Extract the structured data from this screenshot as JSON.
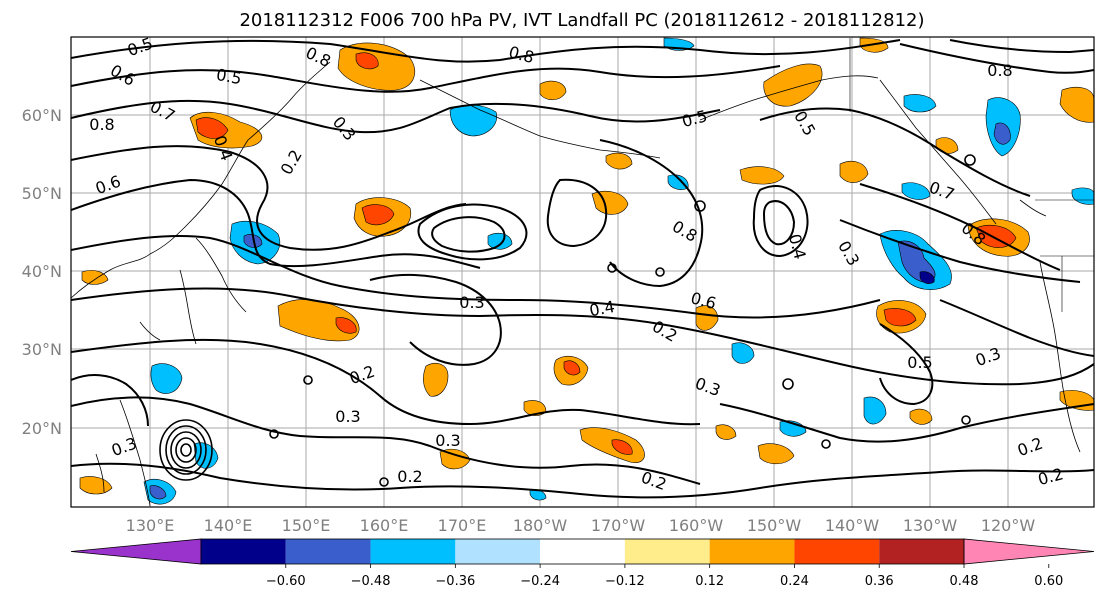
{
  "figure": {
    "title": "2018112312 F006 700 hPa PV, IVT Landfall PC (2018112612 - 2018112812)"
  },
  "map": {
    "lon_ticks": [
      "130°E",
      "140°E",
      "150°E",
      "160°E",
      "170°E",
      "180°W",
      "170°W",
      "160°W",
      "150°W",
      "140°W",
      "130°W",
      "120°W"
    ],
    "lat_ticks": [
      "60°N",
      "50°N",
      "40°N",
      "30°N",
      "20°N"
    ],
    "grid": true,
    "contour_labels": [
      "0.5",
      "0.8",
      "0.6",
      "0.5",
      "0.7",
      "0.8",
      "0.6",
      "0.2",
      "0.3",
      "0.4",
      "0.8",
      "0.5",
      "0.4",
      "0.8",
      "0.3",
      "0.4",
      "0.6",
      "0.3",
      "0.2",
      "0.3",
      "0.2",
      "0.3",
      "0.2",
      "0.3",
      "0.2",
      "0.5",
      "0.3",
      "0.2",
      "0.2",
      "0.3",
      "0.7",
      "0.8",
      "0.5",
      "0.8"
    ]
  },
  "colorbar": {
    "tick_labels": [
      "−0.60",
      "−0.48",
      "−0.36",
      "−0.24",
      "−0.12",
      "0.12",
      "0.24",
      "0.36",
      "0.48",
      "0.60"
    ],
    "colors": [
      "#9933cc",
      "#00008b",
      "#3a5fcd",
      "#00bfff",
      "#b0e2ff",
      "#ffffff",
      "#ffec8b",
      "#ffa500",
      "#ff4500",
      "#b22222",
      "#ff85b4"
    ]
  },
  "chart_data": {
    "type": "heatmap",
    "title": "2018112312 F006 700 hPa PV, IVT Landfall PC (2018112612 - 2018112812)",
    "x_ticks": [
      "130°E",
      "140°E",
      "150°E",
      "160°E",
      "170°E",
      "180°W",
      "170°W",
      "160°W",
      "150°W",
      "140°W",
      "130°W",
      "120°W"
    ],
    "y_ticks": [
      "60°N",
      "50°N",
      "40°N",
      "30°N",
      "20°N"
    ],
    "colorbar_levels": [
      -0.6,
      -0.48,
      -0.36,
      -0.24,
      -0.12,
      0.12,
      0.24,
      0.36,
      0.48,
      0.6
    ],
    "contour_levels": [
      0.2,
      0.3,
      0.4,
      0.5,
      0.6,
      0.7,
      0.8,
      1.0
    ],
    "grid": true
  }
}
